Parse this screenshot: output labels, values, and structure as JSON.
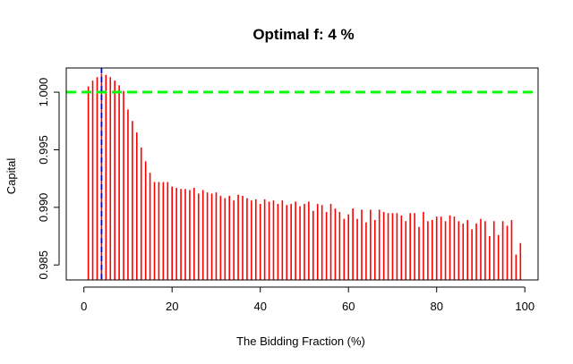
{
  "chart_data": {
    "type": "bar",
    "title": "Optimal f: 4 %",
    "xlabel": "The Bidding Fraction (%)",
    "ylabel": "Capital",
    "xlim": [
      -4,
      103
    ],
    "ylim": [
      0.9837,
      1.0021
    ],
    "x_ticks": [
      0,
      20,
      40,
      60,
      80,
      100
    ],
    "x_tick_labels": [
      "0",
      "20",
      "40",
      "60",
      "80",
      "100"
    ],
    "y_ticks": [
      0.985,
      0.99,
      0.995,
      1.0
    ],
    "y_tick_labels": [
      "0.985",
      "0.990",
      "0.995",
      "1.000"
    ],
    "grid": false,
    "bar_color": "#ff0000",
    "reference_line": {
      "y": 1.0,
      "color": "#00ff00",
      "style": "dashed"
    },
    "optimal_line": {
      "x": 4,
      "color": "#0000ff",
      "style": "dashed"
    },
    "x": [
      1,
      2,
      3,
      4,
      5,
      6,
      7,
      8,
      9,
      10,
      11,
      12,
      13,
      14,
      15,
      16,
      17,
      18,
      19,
      20,
      21,
      22,
      23,
      24,
      25,
      26,
      27,
      28,
      29,
      30,
      31,
      32,
      33,
      34,
      35,
      36,
      37,
      38,
      39,
      40,
      41,
      42,
      43,
      44,
      45,
      46,
      47,
      48,
      49,
      50,
      51,
      52,
      53,
      54,
      55,
      56,
      57,
      58,
      59,
      60,
      61,
      62,
      63,
      64,
      65,
      66,
      67,
      68,
      69,
      70,
      71,
      72,
      73,
      74,
      75,
      76,
      77,
      78,
      79,
      80,
      81,
      82,
      83,
      84,
      85,
      86,
      87,
      88,
      89,
      90,
      91,
      92,
      93,
      94,
      95,
      96,
      97,
      98,
      99
    ],
    "values": [
      1.0005,
      1.001,
      1.0013,
      1.0016,
      1.0015,
      1.0013,
      1.001,
      1.0006,
      1.0001,
      0.9985,
      0.9975,
      0.9965,
      0.9952,
      0.994,
      0.993,
      0.9922,
      0.9922,
      0.9922,
      0.9922,
      0.9918,
      0.9917,
      0.9916,
      0.9916,
      0.9915,
      0.9917,
      0.9912,
      0.9915,
      0.9913,
      0.9912,
      0.9913,
      0.991,
      0.9908,
      0.991,
      0.9906,
      0.9911,
      0.991,
      0.9908,
      0.9906,
      0.9907,
      0.9903,
      0.9907,
      0.9905,
      0.9906,
      0.9903,
      0.9906,
      0.9902,
      0.9903,
      0.9905,
      0.9901,
      0.9903,
      0.9905,
      0.9897,
      0.9903,
      0.9902,
      0.9896,
      0.9903,
      0.9899,
      0.9896,
      0.989,
      0.9894,
      0.9899,
      0.989,
      0.9898,
      0.9887,
      0.9898,
      0.9889,
      0.9898,
      0.9896,
      0.9895,
      0.9895,
      0.9895,
      0.9893,
      0.9888,
      0.9895,
      0.9895,
      0.9883,
      0.9896,
      0.9888,
      0.9889,
      0.9892,
      0.9892,
      0.9888,
      0.9893,
      0.9892,
      0.9888,
      0.9886,
      0.9889,
      0.9881,
      0.9886,
      0.989,
      0.9888,
      0.9875,
      0.9888,
      0.9876,
      0.9888,
      0.9884,
      0.9889,
      0.9859,
      0.9869
    ]
  }
}
